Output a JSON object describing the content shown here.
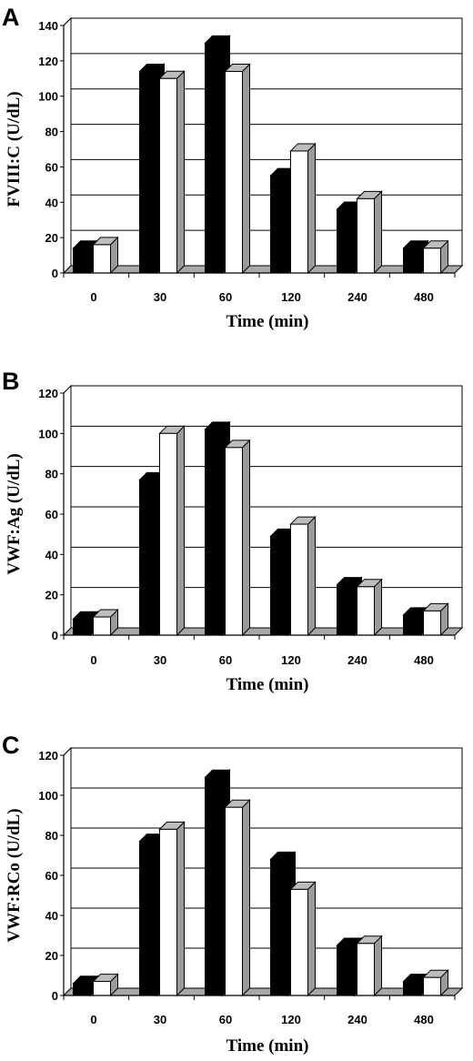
{
  "chart_data": [
    {
      "type": "bar",
      "panel_label": "A",
      "ylabel": "FVIII:C (U/dL)",
      "xlabel": "Time (min)",
      "categories": [
        "0",
        "30",
        "60",
        "120",
        "240",
        "480"
      ],
      "ylim": [
        0,
        140
      ],
      "yticks": [
        0,
        20,
        40,
        60,
        80,
        100,
        120,
        140
      ],
      "grid": true,
      "series": [
        {
          "color": "#000000",
          "values": [
            14,
            114,
            130,
            55,
            36,
            14
          ]
        },
        {
          "color": "#ffffff",
          "values": [
            16,
            110,
            114,
            69,
            42,
            14
          ]
        }
      ]
    },
    {
      "type": "bar",
      "panel_label": "B",
      "ylabel": "VWF:Ag (U/dL)",
      "xlabel": "Time (min)",
      "categories": [
        "0",
        "30",
        "60",
        "120",
        "240",
        "480"
      ],
      "ylim": [
        0,
        120
      ],
      "yticks": [
        0,
        20,
        40,
        60,
        80,
        100,
        120
      ],
      "grid": true,
      "series": [
        {
          "color": "#000000",
          "values": [
            8,
            77,
            102,
            49,
            25,
            10
          ]
        },
        {
          "color": "#ffffff",
          "values": [
            9,
            100,
            93,
            55,
            24,
            12
          ]
        }
      ]
    },
    {
      "type": "bar",
      "panel_label": "C",
      "ylabel": "VWF:RCo (U/dL)",
      "xlabel": "Time (min)",
      "categories": [
        "0",
        "30",
        "60",
        "120",
        "240",
        "480"
      ],
      "ylim": [
        0,
        120
      ],
      "yticks": [
        0,
        20,
        40,
        60,
        80,
        100,
        120
      ],
      "grid": true,
      "series": [
        {
          "color": "#000000",
          "values": [
            6,
            77,
            109,
            68,
            25,
            7
          ]
        },
        {
          "color": "#ffffff",
          "values": [
            7,
            83,
            94,
            53,
            26,
            9
          ]
        }
      ]
    }
  ]
}
